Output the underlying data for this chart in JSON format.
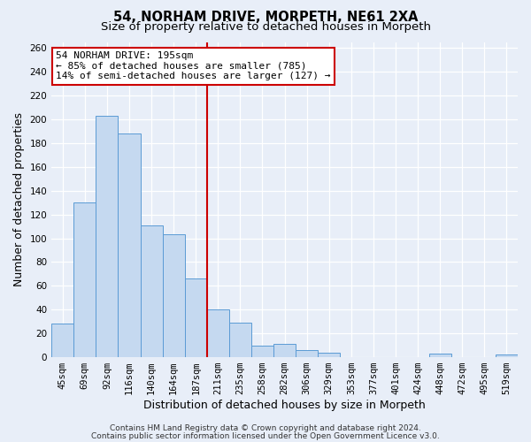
{
  "title": "54, NORHAM DRIVE, MORPETH, NE61 2XA",
  "subtitle": "Size of property relative to detached houses in Morpeth",
  "xlabel": "Distribution of detached houses by size in Morpeth",
  "ylabel": "Number of detached properties",
  "categories": [
    "45sqm",
    "69sqm",
    "92sqm",
    "116sqm",
    "140sqm",
    "164sqm",
    "187sqm",
    "211sqm",
    "235sqm",
    "258sqm",
    "282sqm",
    "306sqm",
    "329sqm",
    "353sqm",
    "377sqm",
    "401sqm",
    "424sqm",
    "448sqm",
    "472sqm",
    "495sqm",
    "519sqm"
  ],
  "values": [
    28,
    130,
    203,
    188,
    111,
    103,
    66,
    40,
    29,
    10,
    11,
    6,
    4,
    0,
    0,
    0,
    0,
    3,
    0,
    0,
    2
  ],
  "bar_color": "#c5d9f0",
  "bar_edge_color": "#5b9bd5",
  "vline_index": 7,
  "vline_color": "#cc0000",
  "annotation_text": "54 NORHAM DRIVE: 195sqm\n← 85% of detached houses are smaller (785)\n14% of semi-detached houses are larger (127) →",
  "annotation_box_color": "#ffffff",
  "annotation_box_edge_color": "#cc0000",
  "ylim": [
    0,
    265
  ],
  "yticks": [
    0,
    20,
    40,
    60,
    80,
    100,
    120,
    140,
    160,
    180,
    200,
    220,
    240,
    260
  ],
  "footer_line1": "Contains HM Land Registry data © Crown copyright and database right 2024.",
  "footer_line2": "Contains public sector information licensed under the Open Government Licence v3.0.",
  "background_color": "#e8eef8",
  "grid_color": "#ffffff",
  "title_fontsize": 10.5,
  "subtitle_fontsize": 9.5,
  "axis_label_fontsize": 9,
  "tick_fontsize": 7.5,
  "annotation_fontsize": 8,
  "footer_fontsize": 6.5
}
